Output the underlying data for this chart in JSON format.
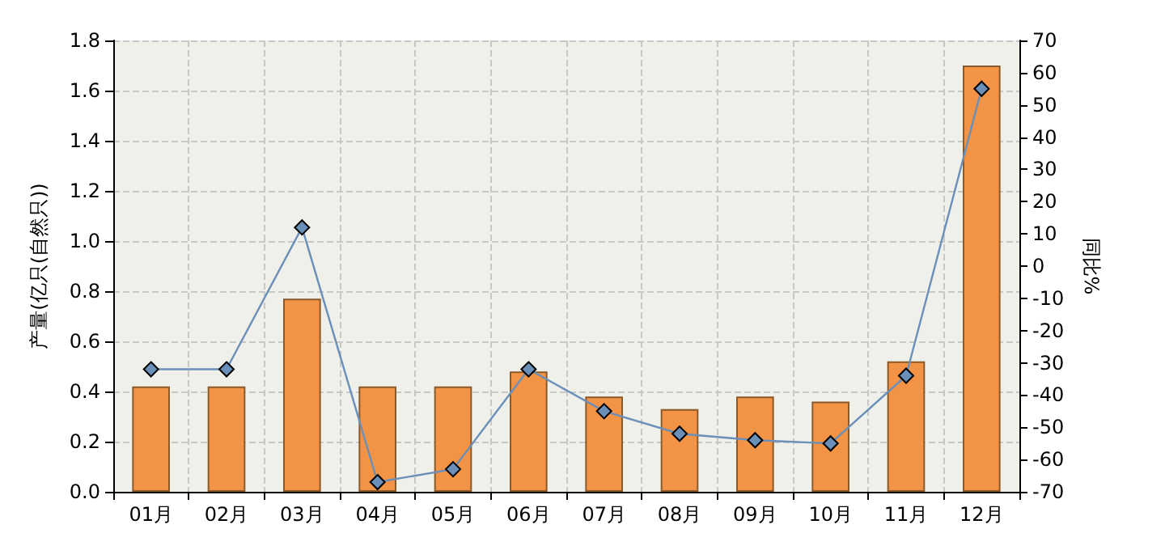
{
  "chart_data": {
    "type": "bar",
    "ylabel": "产量(亿只(自然只))",
    "y2label": "同比%",
    "categories": [
      "01月",
      "02月",
      "03月",
      "04月",
      "05月",
      "06月",
      "07月",
      "08月",
      "09月",
      "10月",
      "11月",
      "12月"
    ],
    "series": [
      {
        "color": "#f39345",
        "values": [
          0.42,
          0.42,
          0.77,
          0.42,
          0.42,
          0.48,
          0.38,
          0.33,
          0.38,
          0.36,
          0.52,
          1.7
        ]
      },
      {
        "type": "line",
        "axis": "y2",
        "color": "#6a8fb8",
        "marker": "diamond",
        "values": [
          -32,
          -32,
          12,
          -67,
          -63,
          -32,
          -45,
          -52,
          -54,
          -55,
          -34,
          55
        ]
      }
    ],
    "ylim": [
      0,
      1.8
    ],
    "yticks": [
      {
        "value": 0,
        "label": "0.0"
      },
      {
        "value": 0.2,
        "label": "0.2"
      },
      {
        "value": 0.4,
        "label": "0.4"
      },
      {
        "value": 0.6,
        "label": "0.6"
      },
      {
        "value": 0.8,
        "label": "0.8"
      },
      {
        "value": 1,
        "label": "1.0"
      },
      {
        "value": 1.2,
        "label": "1.2"
      },
      {
        "value": 1.4,
        "label": "1.4"
      },
      {
        "value": 1.6,
        "label": "1.6"
      },
      {
        "value": 1.8,
        "label": "1.8"
      }
    ],
    "y2lim": [
      -70,
      70
    ],
    "y2ticks": [
      -70,
      -60,
      -50,
      -40,
      -30,
      -20,
      -10,
      0,
      10,
      20,
      30,
      40,
      50,
      60,
      70
    ],
    "grid": true
  }
}
